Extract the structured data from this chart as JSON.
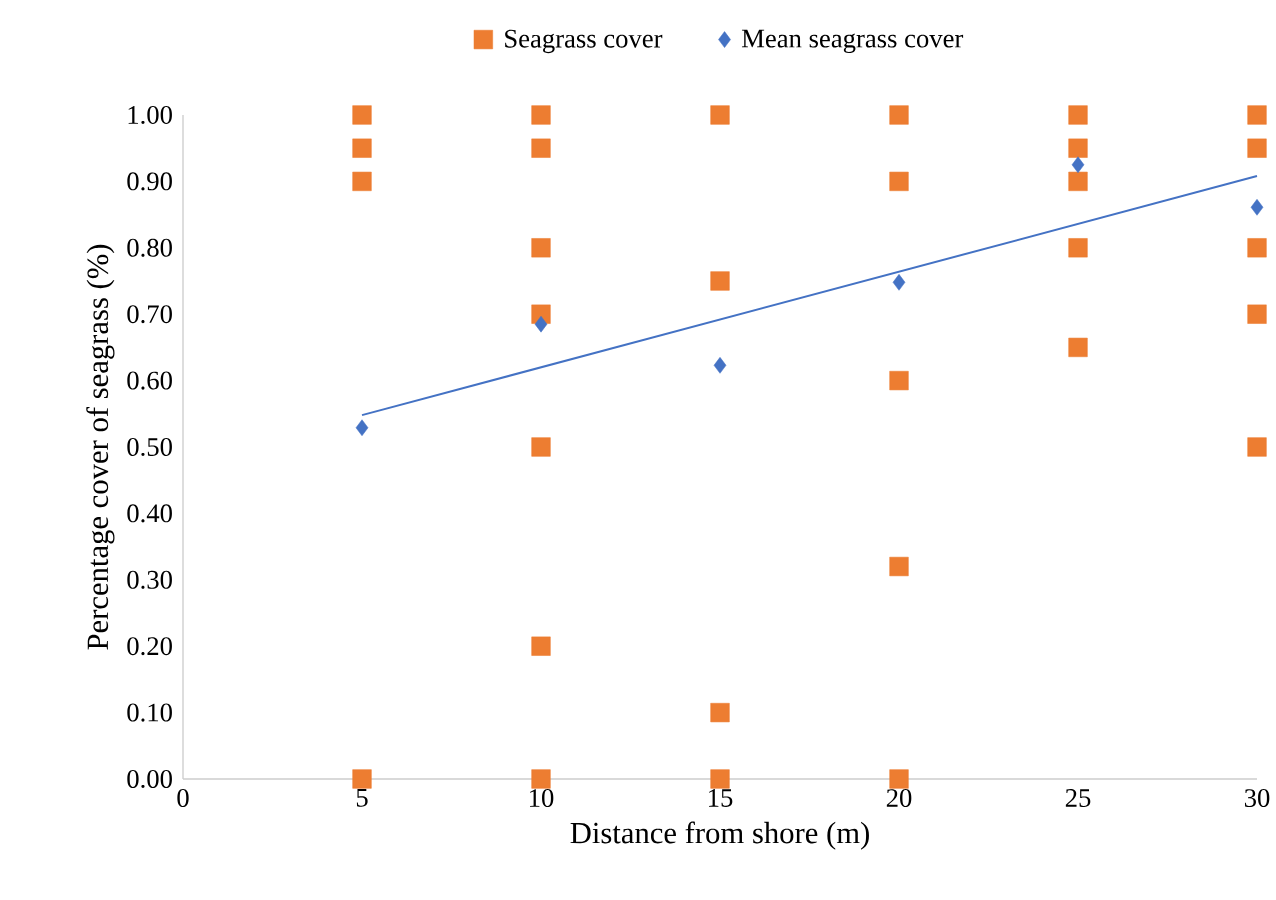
{
  "chart_data": {
    "type": "scatter",
    "xlabel": "Distance from shore (m)",
    "ylabel": "Percentage cover of seagrass (%)",
    "xlim": [
      0,
      30
    ],
    "ylim": [
      0,
      1
    ],
    "xticks": [
      0,
      5,
      10,
      15,
      20,
      25,
      30
    ],
    "yticks": [
      {
        "value": 0,
        "label": "0.00"
      },
      {
        "value": 0.1,
        "label": "0.10"
      },
      {
        "value": 0.2,
        "label": "0.20"
      },
      {
        "value": 0.3,
        "label": "0.30"
      },
      {
        "value": 0.4,
        "label": "0.40"
      },
      {
        "value": 0.5,
        "label": "0.50"
      },
      {
        "value": 0.6,
        "label": "0.60"
      },
      {
        "value": 0.7,
        "label": "0.70"
      },
      {
        "value": 0.8,
        "label": "0.80"
      },
      {
        "value": 0.9,
        "label": "0.90"
      },
      {
        "value": 1,
        "label": "1.00"
      }
    ],
    "legend": "top",
    "series": [
      {
        "name": "Seagrass cover",
        "marker": "square",
        "color": "#ed7d31",
        "x": [
          5,
          5,
          5,
          5,
          10,
          10,
          10,
          10,
          10,
          10,
          10,
          15,
          15,
          15,
          15,
          20,
          20,
          20,
          20,
          20,
          25,
          25,
          25,
          25,
          25,
          30,
          30,
          30,
          30,
          30
        ],
        "values": [
          1,
          0.95,
          0.9,
          0,
          1,
          0.95,
          0.8,
          0.7,
          0.5,
          0.2,
          0,
          1,
          0.75,
          0.1,
          0,
          1,
          0.9,
          0.6,
          0.32,
          0,
          1,
          0.95,
          0.9,
          0.8,
          0.65,
          1,
          0.95,
          0.8,
          0.7,
          0.5
        ]
      },
      {
        "name": "Mean seagrass cover",
        "marker": "diamond",
        "color": "#4472c4",
        "x": [
          5,
          10,
          15,
          20,
          25,
          30
        ],
        "values": [
          0.529,
          0.685,
          0.623,
          0.748,
          0.925,
          0.861
        ]
      },
      {
        "type": "line",
        "marker": "none",
        "line_style": "solid",
        "color": "#4472c4",
        "x": [
          5,
          30
        ],
        "values": [
          0.548,
          0.908
        ]
      }
    ]
  }
}
